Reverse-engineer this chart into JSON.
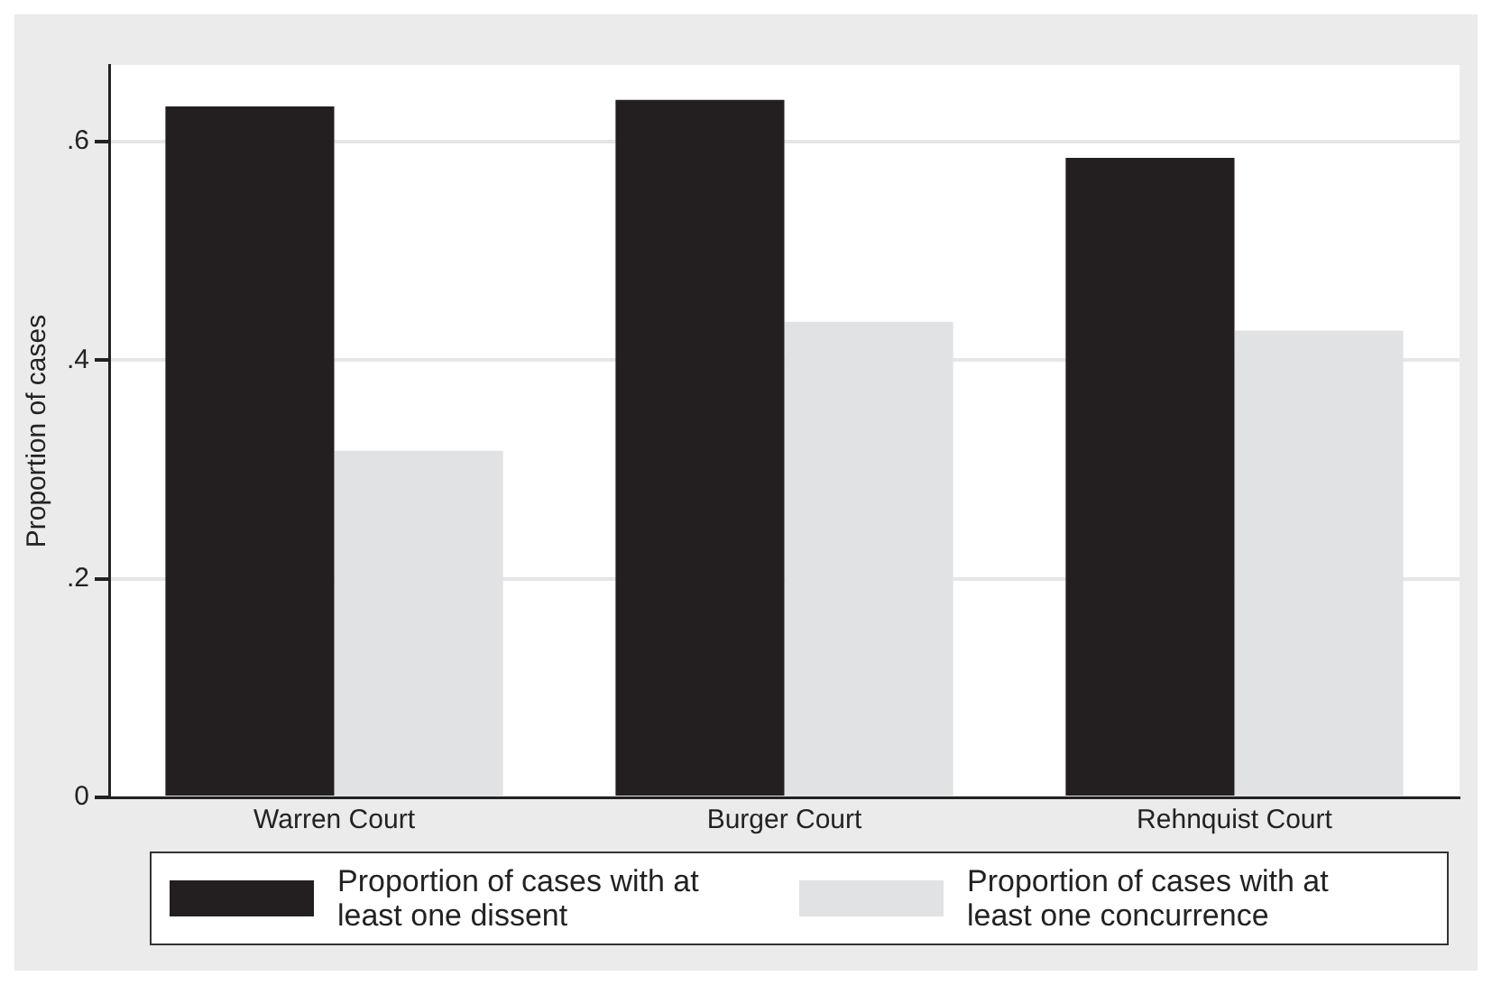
{
  "chart_data": {
    "type": "bar",
    "ylabel": "Proportion of cases",
    "categories": [
      "Warren Court",
      "Burger Court",
      "Rehnquist Court"
    ],
    "series": [
      {
        "name": "Proportion of cases with at least one dissent",
        "color": "#231f20",
        "values": [
          0.632,
          0.638,
          0.585
        ]
      },
      {
        "name": "Proportion of cases with at least one concurrence",
        "color": "#e1e2e4",
        "values": [
          0.317,
          0.435,
          0.427
        ]
      }
    ],
    "ylim": [
      0,
      0.67
    ],
    "yticks": [
      {
        "value": 0,
        "label": "0"
      },
      {
        "value": 0.2,
        "label": ".2"
      },
      {
        "value": 0.4,
        "label": ".4"
      },
      {
        "value": 0.6,
        "label": ".6"
      }
    ],
    "grid": "y",
    "legend": "bottom"
  }
}
